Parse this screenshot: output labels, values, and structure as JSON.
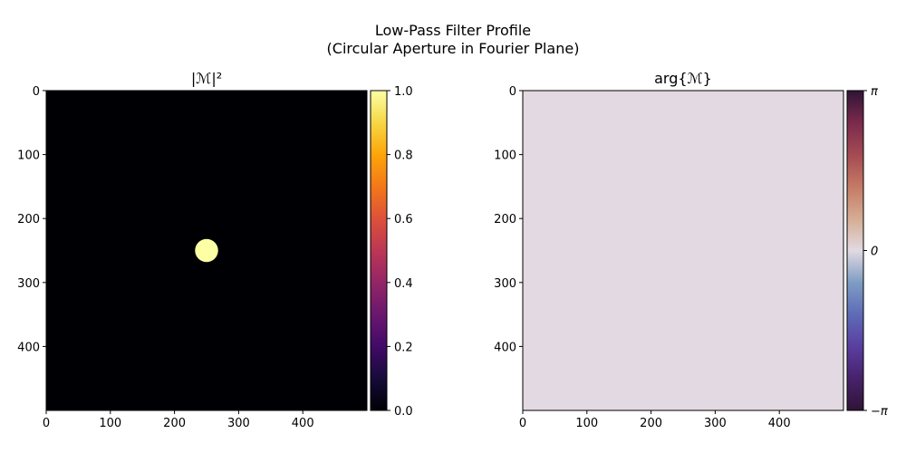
{
  "figure": {
    "title_line1": "Low-Pass Filter Profile",
    "title_line2": "(Circular Aperture in Fourier Plane)"
  },
  "chart_data": [
    {
      "type": "heatmap",
      "title": "|ℳ|²",
      "xlabel": "",
      "ylabel": "",
      "image_size": [
        500,
        500
      ],
      "xlim": [
        0,
        500
      ],
      "ylim": [
        500,
        0
      ],
      "xticks": [
        0,
        100,
        200,
        300,
        400
      ],
      "yticks": [
        0,
        100,
        200,
        300,
        400
      ],
      "background_value": 0.0,
      "aperture": {
        "shape": "circle",
        "center": [
          250,
          250
        ],
        "radius": 18,
        "value": 1.0
      },
      "colormap": "inferno",
      "colorbar": {
        "min": 0.0,
        "max": 1.0,
        "ticks": [
          "0.0",
          "0.2",
          "0.4",
          "0.6",
          "0.8",
          "1.0"
        ]
      },
      "colors": {
        "background": "#000004",
        "aperture": "#fcffa4"
      }
    },
    {
      "type": "heatmap",
      "title": "arg{ℳ}",
      "xlabel": "",
      "ylabel": "",
      "image_size": [
        500,
        500
      ],
      "xlim": [
        0,
        500
      ],
      "ylim": [
        500,
        0
      ],
      "xticks": [
        0,
        100,
        200,
        300,
        400
      ],
      "yticks": [
        0,
        100,
        200,
        300,
        400
      ],
      "uniform_value": 0.0,
      "colormap": "twilight_shifted",
      "colorbar": {
        "min": -3.14159,
        "max": 3.14159,
        "ticks": [
          "−π",
          "0",
          "π"
        ]
      },
      "colors": {
        "fill": "#e2d9e2"
      }
    }
  ]
}
